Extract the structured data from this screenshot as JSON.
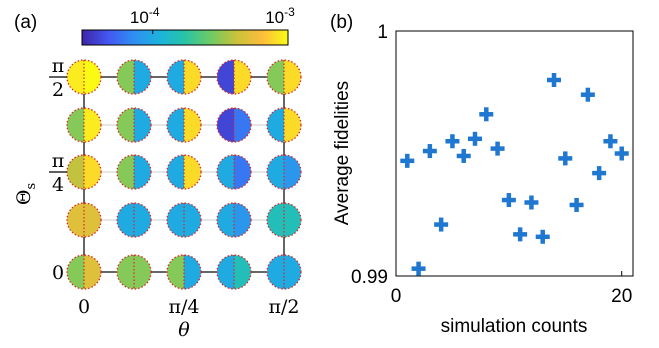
{
  "panel_a": {
    "label": "(a)",
    "colorbar": {
      "ticks": [
        {
          "base": "10",
          "exp": "-4",
          "value": 0.0001
        },
        {
          "base": "10",
          "exp": "-3",
          "value": 0.001
        }
      ],
      "range": [
        3e-05,
        0.001
      ],
      "colors": [
        "#3e26a8",
        "#4356f0",
        "#2f8ef2",
        "#1bb3dc",
        "#29c4a6",
        "#6ecb63",
        "#c9c23a",
        "#fdbd3c",
        "#f9fb14"
      ]
    },
    "y_ticks": [
      {
        "num": "π",
        "den": "2"
      },
      {
        "num": "π",
        "den": "4"
      },
      {
        "text": "0"
      }
    ],
    "ylabel": "Θ",
    "ylabel_sub": "s",
    "x_ticks": [
      "0",
      "π/4",
      "π/2"
    ],
    "xlabel": "θ",
    "grid_rows": [
      [
        {
          "left": 0.0009,
          "right": 0.001
        },
        {
          "left": 0.0003,
          "right": 0.0001
        },
        {
          "left": 0.0001,
          "right": 0.0008
        },
        {
          "left": 4e-05,
          "right": 0.0008
        },
        {
          "left": 0.0003,
          "right": 0.0008
        }
      ],
      [
        {
          "left": 0.0003,
          "right": 0.0009
        },
        {
          "left": 0.0003,
          "right": 0.0001
        },
        {
          "left": 0.0001,
          "right": 0.0008
        },
        {
          "left": 4e-05,
          "right": 6e-05
        },
        {
          "left": 0.0001,
          "right": 0.0008
        }
      ],
      [
        {
          "left": 0.0004,
          "right": 0.0008
        },
        {
          "left": 0.0003,
          "right": 0.0001
        },
        {
          "left": 0.0001,
          "right": 0.0008
        },
        {
          "left": 0.0001,
          "right": 6e-05
        },
        {
          "left": 0.0001,
          "right": 8e-05
        }
      ],
      [
        {
          "left": 0.0005,
          "right": 0.0005
        },
        {
          "left": 0.0001,
          "right": 0.0001
        },
        {
          "left": 0.0001,
          "right": 0.0001
        },
        {
          "left": 0.0001,
          "right": 8e-05
        },
        {
          "left": 0.00015,
          "right": 0.00015
        }
      ],
      [
        {
          "left": 0.0003,
          "right": 0.0005
        },
        {
          "left": 0.0003,
          "right": 0.0003
        },
        {
          "left": 0.0003,
          "right": 0.0001
        },
        {
          "left": 0.0001,
          "right": 0.00015
        },
        {
          "left": 0.0001,
          "right": 0.0001
        }
      ]
    ]
  },
  "panel_b": {
    "label": "(b)",
    "colors": {
      "marker": "#1f77d0"
    }
  },
  "chart_data": {
    "type": "scatter",
    "xlabel": "simulation counts",
    "ylabel": "Average fidelities",
    "xlim": [
      0,
      21
    ],
    "ylim": [
      0.99,
      1
    ],
    "x_ticks": [
      {
        "value": 0,
        "label": "0"
      },
      {
        "value": 20,
        "label": "20"
      }
    ],
    "y_ticks": [
      {
        "value": 0.99,
        "label": "0.99"
      },
      {
        "value": 1,
        "label": "1"
      }
    ],
    "points": [
      {
        "x": 1,
        "y": 0.9947
      },
      {
        "x": 2,
        "y": 0.9903
      },
      {
        "x": 3,
        "y": 0.9951
      },
      {
        "x": 4,
        "y": 0.9921
      },
      {
        "x": 5,
        "y": 0.9955
      },
      {
        "x": 6,
        "y": 0.9949
      },
      {
        "x": 7,
        "y": 0.9956
      },
      {
        "x": 8,
        "y": 0.9966
      },
      {
        "x": 9,
        "y": 0.9952
      },
      {
        "x": 10,
        "y": 0.9931
      },
      {
        "x": 11,
        "y": 0.9917
      },
      {
        "x": 12,
        "y": 0.993
      },
      {
        "x": 13,
        "y": 0.9916
      },
      {
        "x": 14,
        "y": 0.998
      },
      {
        "x": 15,
        "y": 0.9948
      },
      {
        "x": 16,
        "y": 0.9929
      },
      {
        "x": 17,
        "y": 0.9974
      },
      {
        "x": 18,
        "y": 0.9942
      },
      {
        "x": 19,
        "y": 0.9955
      },
      {
        "x": 20,
        "y": 0.995
      }
    ]
  }
}
